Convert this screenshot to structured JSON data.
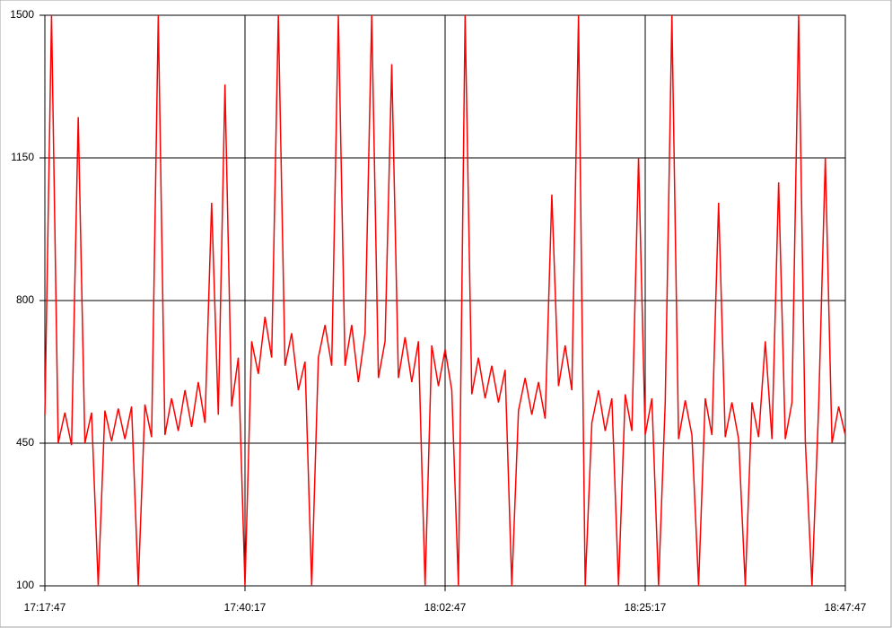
{
  "chart_data": {
    "type": "line",
    "x": [
      62267,
      62312,
      62357,
      62402,
      62447,
      62492,
      62537,
      62582,
      62627,
      62672,
      62717,
      62762,
      62807,
      62852,
      62897,
      62942,
      62987,
      63032,
      63077,
      63122,
      63167,
      63212,
      63257,
      63302,
      63347,
      63392,
      63437,
      63482,
      63527,
      63572,
      63617,
      63662,
      63707,
      63752,
      63797,
      63842,
      63887,
      63932,
      63977,
      64022,
      64067,
      64112,
      64157,
      64202,
      64247,
      64292,
      64337,
      64382,
      64427,
      64472,
      64517,
      64562,
      64607,
      64652,
      64697,
      64742,
      64787,
      64832,
      64877,
      64922,
      64967,
      65012,
      65057,
      65102,
      65147,
      65192,
      65237,
      65282,
      65327,
      65372,
      65417,
      65462,
      65507,
      65552,
      65597,
      65642,
      65687,
      65732,
      65777,
      65822,
      65867,
      65912,
      65957,
      66002,
      66047,
      66092,
      66137,
      66182,
      66227,
      66272,
      66317,
      66362,
      66407,
      66452,
      66497,
      66542,
      66587,
      66632,
      66677,
      66722,
      66767,
      66812,
      66857,
      66902,
      66947,
      66992,
      67037,
      67082,
      67127,
      67172,
      67217,
      67262,
      67307,
      67352,
      67397,
      67442,
      67487,
      67532,
      67577,
      67622,
      67667
    ],
    "series": [
      {
        "color": "#ff0000",
        "values": [
          520,
          1500,
          450,
          525,
          445,
          1250,
          450,
          525,
          100,
          530,
          455,
          535,
          460,
          540,
          100,
          545,
          465,
          1500,
          470,
          560,
          480,
          580,
          490,
          600,
          500,
          1040,
          520,
          1330,
          540,
          660,
          100,
          700,
          620,
          760,
          660,
          1500,
          640,
          720,
          580,
          650,
          100,
          660,
          740,
          640,
          1500,
          640,
          740,
          600,
          720,
          1500,
          610,
          700,
          1380,
          610,
          710,
          600,
          700,
          100,
          690,
          590,
          680,
          580,
          100,
          1500,
          570,
          660,
          560,
          640,
          550,
          630,
          100,
          530,
          610,
          520,
          600,
          510,
          1060,
          590,
          690,
          580,
          1500,
          100,
          500,
          580,
          480,
          560,
          100,
          570,
          480,
          1150,
          470,
          560,
          100,
          550,
          1500,
          460,
          555,
          470,
          100,
          560,
          470,
          1040,
          465,
          550,
          460,
          100,
          550,
          465,
          700,
          460,
          1090,
          460,
          550,
          1500,
          455,
          100,
          540,
          1150,
          450,
          540,
          470
        ]
      }
    ],
    "xlim": [
      62267,
      67667
    ],
    "xticks": [
      {
        "value": 62267,
        "label": "17:17:47"
      },
      {
        "value": 63617,
        "label": "17:40:17"
      },
      {
        "value": 64967,
        "label": "18:02:47"
      },
      {
        "value": 66317,
        "label": "18:25:17"
      },
      {
        "value": 67667,
        "label": "18:47:47"
      }
    ],
    "ylim": [
      100,
      1500
    ],
    "yticks": [
      100,
      450,
      800,
      1150,
      1500
    ],
    "grid": true
  }
}
